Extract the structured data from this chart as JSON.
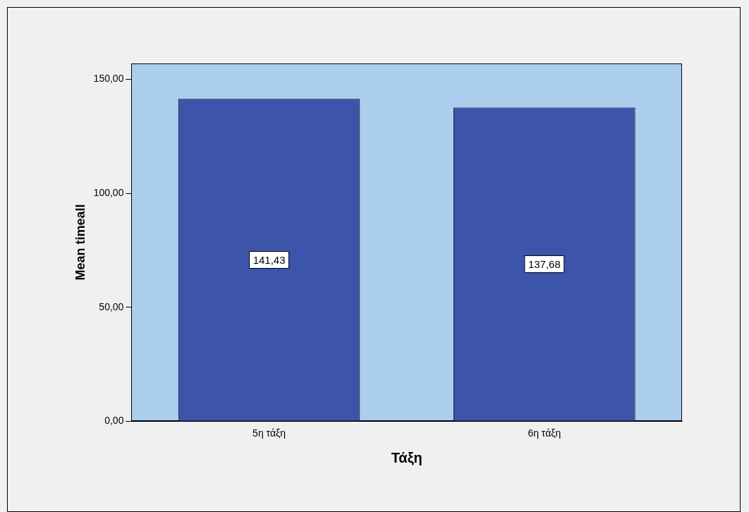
{
  "chart_data": {
    "type": "bar",
    "xlabel": "Τάξη",
    "ylabel": "Mean timeall",
    "categories": [
      "5η τάξη",
      "6η τάξη"
    ],
    "values": [
      141.43,
      137.68
    ],
    "value_labels": [
      "141,43",
      "137,68"
    ],
    "color": "#3c55aa",
    "ylim": [
      0,
      157
    ],
    "yticks": [
      {
        "value": 0,
        "label": "0,00"
      },
      {
        "value": 50,
        "label": "50,00"
      },
      {
        "value": 100,
        "label": "100,00"
      },
      {
        "value": 150,
        "label": "150,00"
      }
    ],
    "grid": false,
    "legend": false
  }
}
